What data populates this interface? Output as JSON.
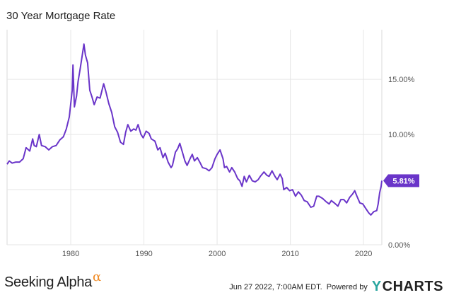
{
  "chart_data": {
    "type": "line",
    "title": "30 Year Mortgage Rate",
    "xlabel": "",
    "ylabel": "",
    "xlim": [
      1971.3,
      2022.5
    ],
    "ylim": [
      0,
      19.5
    ],
    "x_ticks": [
      1980,
      1990,
      2000,
      2010,
      2020
    ],
    "y_ticks": [
      0,
      5,
      10,
      15
    ],
    "y_tick_labels": [
      "0.00%",
      "",
      "10.00%",
      "15.00%"
    ],
    "grid": true,
    "last_value_label": "5.81%",
    "series": [
      {
        "name": "",
        "color": "#6a35c9",
        "points": [
          [
            1971.3,
            7.3
          ],
          [
            1971.6,
            7.6
          ],
          [
            1972.0,
            7.4
          ],
          [
            1972.5,
            7.5
          ],
          [
            1973.0,
            7.5
          ],
          [
            1973.5,
            7.8
          ],
          [
            1973.9,
            8.8
          ],
          [
            1974.4,
            8.5
          ],
          [
            1974.8,
            9.6
          ],
          [
            1975.0,
            9.0
          ],
          [
            1975.3,
            8.9
          ],
          [
            1975.7,
            10.0
          ],
          [
            1976.0,
            9.0
          ],
          [
            1976.5,
            8.9
          ],
          [
            1977.0,
            8.6
          ],
          [
            1977.5,
            8.9
          ],
          [
            1978.0,
            9.0
          ],
          [
            1978.5,
            9.5
          ],
          [
            1979.0,
            9.8
          ],
          [
            1979.4,
            10.5
          ],
          [
            1979.8,
            11.6
          ],
          [
            1980.2,
            14.0
          ],
          [
            1980.3,
            16.3
          ],
          [
            1980.5,
            12.5
          ],
          [
            1980.8,
            13.5
          ],
          [
            1981.0,
            14.8
          ],
          [
            1981.3,
            16.0
          ],
          [
            1981.6,
            17.3
          ],
          [
            1981.8,
            18.2
          ],
          [
            1982.0,
            17.2
          ],
          [
            1982.3,
            16.5
          ],
          [
            1982.6,
            14.0
          ],
          [
            1982.9,
            13.4
          ],
          [
            1983.2,
            12.7
          ],
          [
            1983.6,
            13.4
          ],
          [
            1984.0,
            13.3
          ],
          [
            1984.5,
            14.6
          ],
          [
            1984.8,
            13.9
          ],
          [
            1985.2,
            12.8
          ],
          [
            1985.6,
            12.0
          ],
          [
            1986.0,
            10.7
          ],
          [
            1986.4,
            10.2
          ],
          [
            1986.8,
            9.3
          ],
          [
            1987.2,
            9.1
          ],
          [
            1987.5,
            10.2
          ],
          [
            1987.8,
            10.9
          ],
          [
            1988.2,
            10.3
          ],
          [
            1988.6,
            10.5
          ],
          [
            1988.9,
            10.4
          ],
          [
            1989.2,
            10.9
          ],
          [
            1989.6,
            10.0
          ],
          [
            1989.9,
            9.7
          ],
          [
            1990.3,
            10.3
          ],
          [
            1990.7,
            10.1
          ],
          [
            1991.0,
            9.6
          ],
          [
            1991.5,
            9.4
          ],
          [
            1991.9,
            8.6
          ],
          [
            1992.2,
            8.8
          ],
          [
            1992.6,
            7.9
          ],
          [
            1992.9,
            8.3
          ],
          [
            1993.3,
            7.5
          ],
          [
            1993.7,
            7.0
          ],
          [
            1993.9,
            7.2
          ],
          [
            1994.3,
            8.4
          ],
          [
            1994.6,
            8.7
          ],
          [
            1994.9,
            9.2
          ],
          [
            1995.3,
            8.3
          ],
          [
            1995.6,
            7.6
          ],
          [
            1995.9,
            7.2
          ],
          [
            1996.3,
            7.8
          ],
          [
            1996.6,
            8.2
          ],
          [
            1996.9,
            7.6
          ],
          [
            1997.3,
            7.9
          ],
          [
            1997.7,
            7.4
          ],
          [
            1998.0,
            7.0
          ],
          [
            1998.5,
            6.9
          ],
          [
            1998.9,
            6.7
          ],
          [
            1999.3,
            7.0
          ],
          [
            1999.7,
            7.8
          ],
          [
            2000.0,
            8.2
          ],
          [
            2000.4,
            8.6
          ],
          [
            2000.8,
            7.8
          ],
          [
            2001.0,
            7.0
          ],
          [
            2001.3,
            7.1
          ],
          [
            2001.7,
            6.6
          ],
          [
            2002.0,
            7.0
          ],
          [
            2002.4,
            6.6
          ],
          [
            2002.8,
            6.0
          ],
          [
            2003.1,
            5.8
          ],
          [
            2003.4,
            5.3
          ],
          [
            2003.7,
            6.2
          ],
          [
            2004.0,
            5.7
          ],
          [
            2004.4,
            6.3
          ],
          [
            2004.8,
            5.8
          ],
          [
            2005.2,
            5.7
          ],
          [
            2005.6,
            5.9
          ],
          [
            2005.9,
            6.2
          ],
          [
            2006.4,
            6.6
          ],
          [
            2006.8,
            6.3
          ],
          [
            2007.1,
            6.2
          ],
          [
            2007.5,
            6.7
          ],
          [
            2007.9,
            6.2
          ],
          [
            2008.2,
            5.9
          ],
          [
            2008.6,
            6.4
          ],
          [
            2008.9,
            6.0
          ],
          [
            2009.1,
            5.0
          ],
          [
            2009.5,
            5.2
          ],
          [
            2009.9,
            4.9
          ],
          [
            2010.3,
            5.0
          ],
          [
            2010.7,
            4.4
          ],
          [
            2011.1,
            4.8
          ],
          [
            2011.5,
            4.5
          ],
          [
            2011.9,
            4.0
          ],
          [
            2012.3,
            3.9
          ],
          [
            2012.8,
            3.4
          ],
          [
            2013.2,
            3.5
          ],
          [
            2013.6,
            4.4
          ],
          [
            2013.9,
            4.4
          ],
          [
            2014.4,
            4.2
          ],
          [
            2014.9,
            3.9
          ],
          [
            2015.3,
            3.7
          ],
          [
            2015.6,
            4.0
          ],
          [
            2016.0,
            3.8
          ],
          [
            2016.5,
            3.5
          ],
          [
            2016.9,
            4.1
          ],
          [
            2017.3,
            4.1
          ],
          [
            2017.7,
            3.8
          ],
          [
            2018.1,
            4.3
          ],
          [
            2018.5,
            4.6
          ],
          [
            2018.8,
            4.9
          ],
          [
            2019.1,
            4.4
          ],
          [
            2019.5,
            3.8
          ],
          [
            2019.9,
            3.7
          ],
          [
            2020.3,
            3.3
          ],
          [
            2020.7,
            2.9
          ],
          [
            2021.0,
            2.7
          ],
          [
            2021.4,
            3.0
          ],
          [
            2021.8,
            3.1
          ],
          [
            2022.0,
            3.7
          ],
          [
            2022.2,
            4.7
          ],
          [
            2022.4,
            5.3
          ],
          [
            2022.5,
            5.81
          ]
        ]
      }
    ]
  },
  "footer": {
    "brand": "Seeking Alpha",
    "brand_mark": "α",
    "timestamp": "Jun 27 2022, 7:00AM EDT.",
    "powered_by": "Powered by",
    "logo_y": "Y",
    "logo_rest": "CHARTS"
  }
}
